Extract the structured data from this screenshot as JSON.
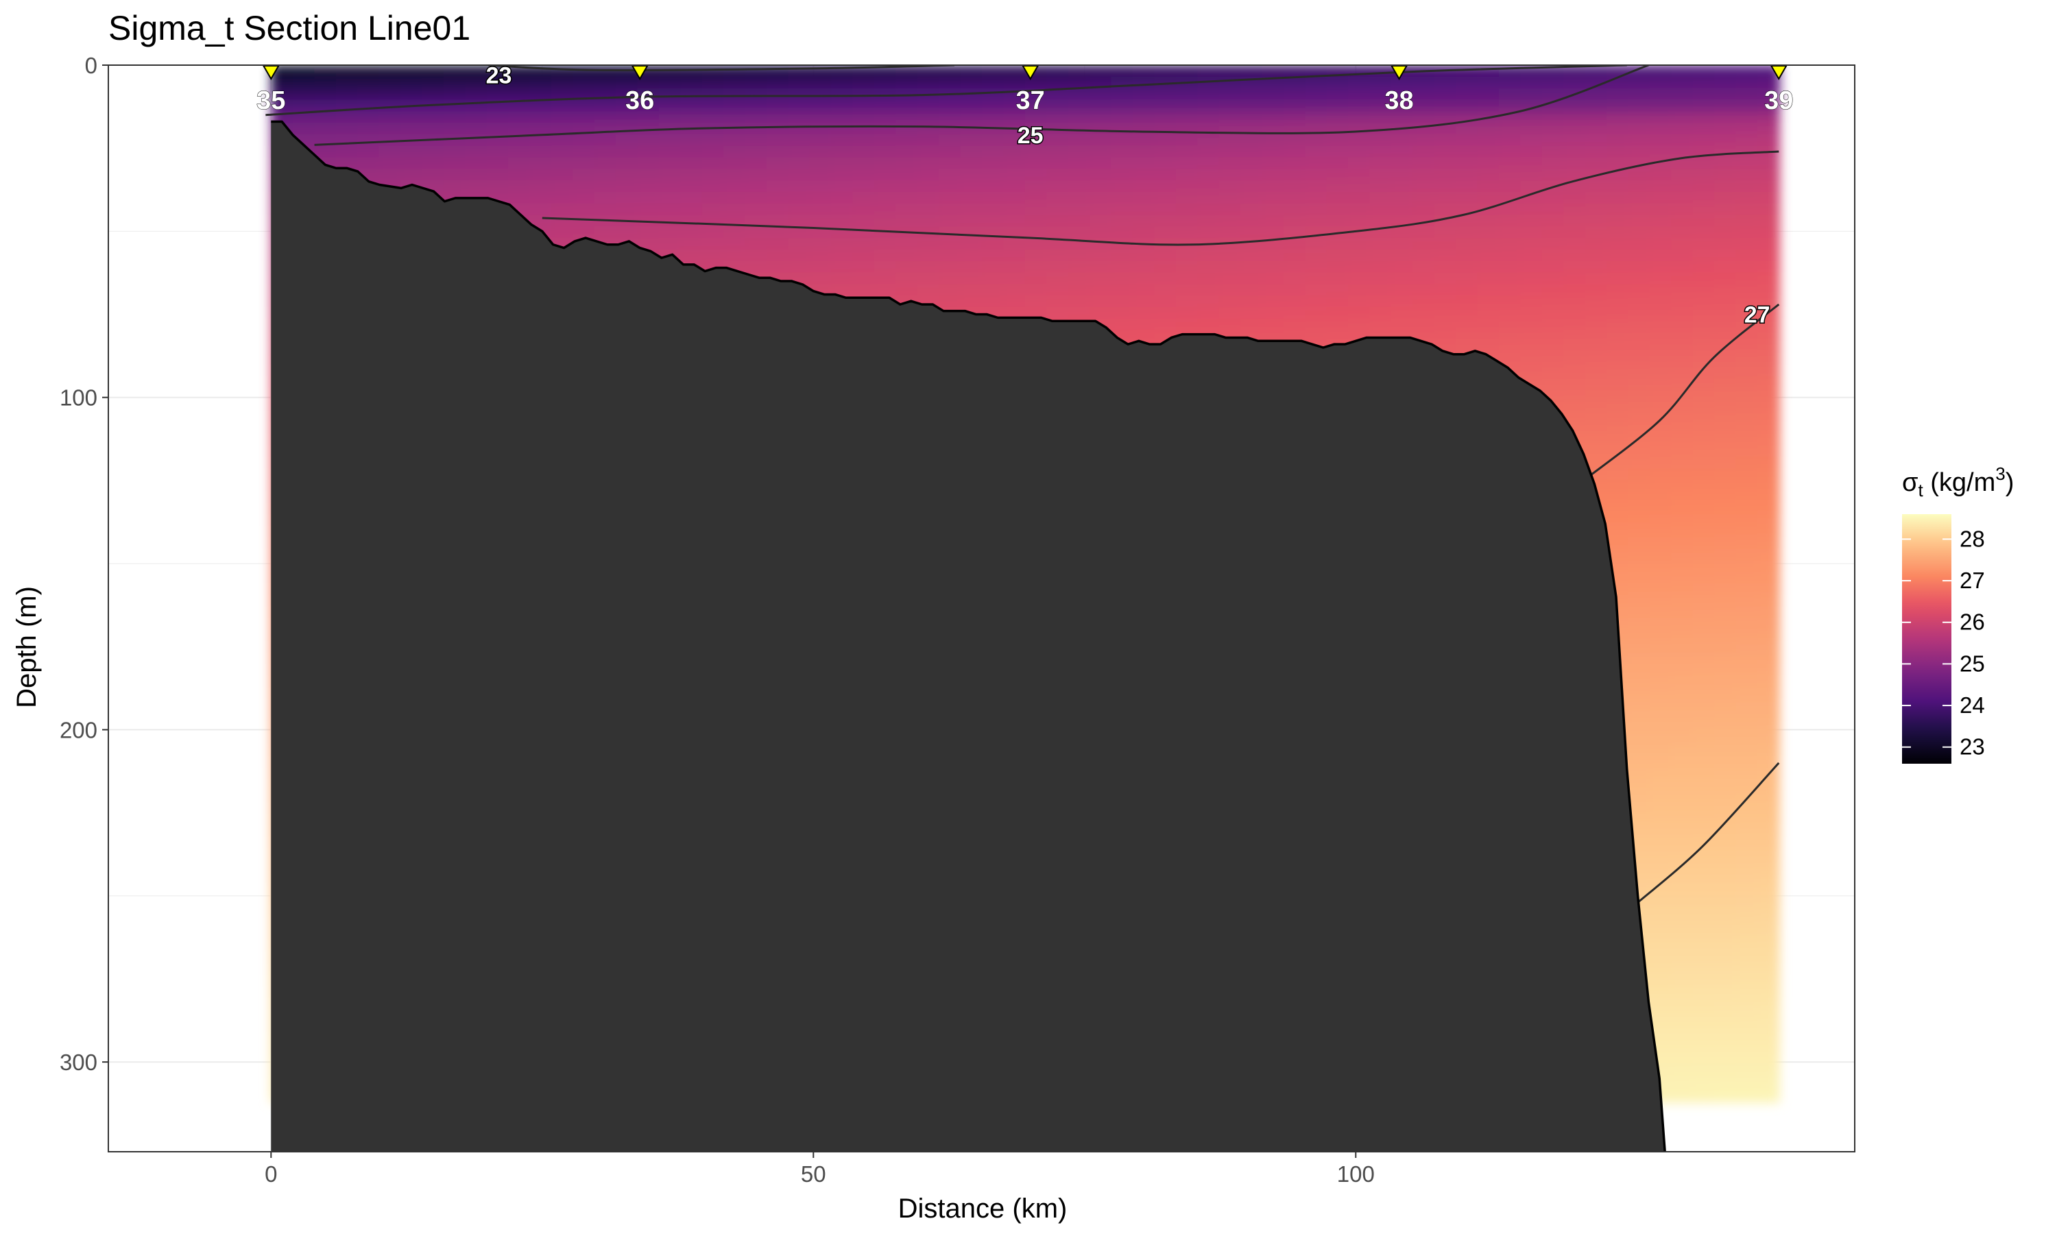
{
  "chart_data": {
    "type": "heatmap",
    "title": "Sigma_t Section Line01",
    "xlabel": "Distance (km)",
    "ylabel": "Depth (m)",
    "xlim": [
      -15,
      146
    ],
    "ylim": [
      327,
      0
    ],
    "y_reversed": true,
    "x_ticks": [
      0,
      50,
      100
    ],
    "y_ticks": [
      0,
      100,
      200,
      300
    ],
    "grid": true,
    "legend": {
      "title_main": "σ",
      "title_sub": "t",
      "title_unit": " (kg/m",
      "title_sup": "3",
      "title_close": ")",
      "position": "right",
      "colormap": "magma",
      "range": [
        22.6,
        28.6
      ],
      "ticks": [
        23,
        24,
        25,
        26,
        27,
        28
      ]
    },
    "field_max_depth": 312,
    "stations": [
      {
        "label": "35",
        "x": 0
      },
      {
        "label": "36",
        "x": 34
      },
      {
        "label": "37",
        "x": 70
      },
      {
        "label": "38",
        "x": 104
      },
      {
        "label": "39",
        "x": 139
      }
    ],
    "contour_labels": [
      {
        "label": "23",
        "x": 21,
        "y": 3
      },
      {
        "label": "25",
        "x": 70,
        "y": 21
      },
      {
        "label": "27",
        "x": 137,
        "y": 75
      }
    ],
    "contours": [
      {
        "level": 23,
        "points": [
          [
            20,
            0
          ],
          [
            30,
            1.5
          ],
          [
            50,
            1
          ],
          [
            63,
            0
          ]
        ]
      },
      {
        "level": 24,
        "points": [
          [
            -0.5,
            15
          ],
          [
            15,
            12
          ],
          [
            35,
            9.5
          ],
          [
            60,
            9
          ],
          [
            80,
            6
          ],
          [
            105,
            2
          ],
          [
            125,
            0
          ]
        ]
      },
      {
        "level": 25,
        "points": [
          [
            4,
            24
          ],
          [
            25,
            21
          ],
          [
            40,
            19
          ],
          [
            60,
            18.5
          ],
          [
            80,
            20
          ],
          [
            100,
            20
          ],
          [
            115,
            14
          ],
          [
            127,
            0
          ]
        ]
      },
      {
        "level": 26,
        "points": [
          [
            25,
            46
          ],
          [
            50,
            49
          ],
          [
            70,
            52
          ],
          [
            85,
            54
          ],
          [
            100,
            50
          ],
          [
            110,
            45
          ],
          [
            120,
            35
          ],
          [
            130,
            28
          ],
          [
            139,
            26
          ]
        ]
      },
      {
        "level": 27,
        "points": [
          [
            121,
            125
          ],
          [
            128,
            107
          ],
          [
            133,
            88
          ],
          [
            139,
            72
          ]
        ]
      },
      {
        "level": 28,
        "points": [
          [
            126,
            252
          ],
          [
            132,
            235
          ],
          [
            139,
            210
          ]
        ]
      }
    ],
    "bathymetry": [
      [
        0,
        17
      ],
      [
        1,
        17
      ],
      [
        2,
        21
      ],
      [
        3,
        24
      ],
      [
        4,
        27
      ],
      [
        5,
        30
      ],
      [
        6,
        31
      ],
      [
        7,
        31
      ],
      [
        8,
        32
      ],
      [
        9,
        35
      ],
      [
        10,
        36
      ],
      [
        12,
        37
      ],
      [
        13,
        36
      ],
      [
        15,
        38
      ],
      [
        16,
        41
      ],
      [
        17,
        40
      ],
      [
        18,
        40
      ],
      [
        20,
        40
      ],
      [
        22,
        42
      ],
      [
        23,
        45
      ],
      [
        24,
        48
      ],
      [
        25,
        50
      ],
      [
        26,
        54
      ],
      [
        27,
        55
      ],
      [
        28,
        53
      ],
      [
        29,
        52
      ],
      [
        31,
        54
      ],
      [
        32,
        54
      ],
      [
        33,
        53
      ],
      [
        34,
        55
      ],
      [
        35,
        56
      ],
      [
        36,
        58
      ],
      [
        37,
        57
      ],
      [
        38,
        60
      ],
      [
        39,
        60
      ],
      [
        40,
        62
      ],
      [
        41,
        61
      ],
      [
        42,
        61
      ],
      [
        43,
        62
      ],
      [
        44,
        63
      ],
      [
        45,
        64
      ],
      [
        46,
        64
      ],
      [
        47,
        65
      ],
      [
        48,
        65
      ],
      [
        49,
        66
      ],
      [
        50,
        68
      ],
      [
        51,
        69
      ],
      [
        52,
        69
      ],
      [
        53,
        70
      ],
      [
        54,
        70
      ],
      [
        55,
        70
      ],
      [
        56,
        70
      ],
      [
        57,
        70
      ],
      [
        58,
        72
      ],
      [
        59,
        71
      ],
      [
        60,
        72
      ],
      [
        61,
        72
      ],
      [
        62,
        74
      ],
      [
        63,
        74
      ],
      [
        64,
        74
      ],
      [
        65,
        75
      ],
      [
        66,
        75
      ],
      [
        67,
        76
      ],
      [
        68,
        76
      ],
      [
        69,
        76
      ],
      [
        70,
        76
      ],
      [
        71,
        76
      ],
      [
        72,
        77
      ],
      [
        73,
        77
      ],
      [
        74,
        77
      ],
      [
        75,
        77
      ],
      [
        76,
        77
      ],
      [
        77,
        79
      ],
      [
        78,
        82
      ],
      [
        79,
        84
      ],
      [
        80,
        83
      ],
      [
        81,
        84
      ],
      [
        82,
        84
      ],
      [
        83,
        82
      ],
      [
        84,
        81
      ],
      [
        85,
        81
      ],
      [
        86,
        81
      ],
      [
        87,
        81
      ],
      [
        88,
        82
      ],
      [
        89,
        82
      ],
      [
        90,
        82
      ],
      [
        91,
        83
      ],
      [
        92,
        83
      ],
      [
        93,
        83
      ],
      [
        94,
        83
      ],
      [
        95,
        83
      ],
      [
        96,
        84
      ],
      [
        97,
        85
      ],
      [
        98,
        84
      ],
      [
        99,
        84
      ],
      [
        100,
        83
      ],
      [
        101,
        82
      ],
      [
        102,
        82
      ],
      [
        103,
        82
      ],
      [
        104,
        82
      ],
      [
        105,
        82
      ],
      [
        106,
        83
      ],
      [
        107,
        84
      ],
      [
        108,
        86
      ],
      [
        109,
        87
      ],
      [
        110,
        87
      ],
      [
        111,
        86
      ],
      [
        112,
        87
      ],
      [
        113,
        89
      ],
      [
        114,
        91
      ],
      [
        115,
        94
      ],
      [
        116,
        96
      ],
      [
        117,
        98
      ],
      [
        118,
        101
      ],
      [
        119,
        105
      ],
      [
        120,
        110
      ],
      [
        121,
        117
      ],
      [
        122,
        126
      ],
      [
        123,
        138
      ],
      [
        124,
        160
      ],
      [
        125,
        212
      ],
      [
        126,
        250
      ],
      [
        127,
        282
      ],
      [
        128,
        305
      ],
      [
        128.5,
        327
      ]
    ]
  }
}
